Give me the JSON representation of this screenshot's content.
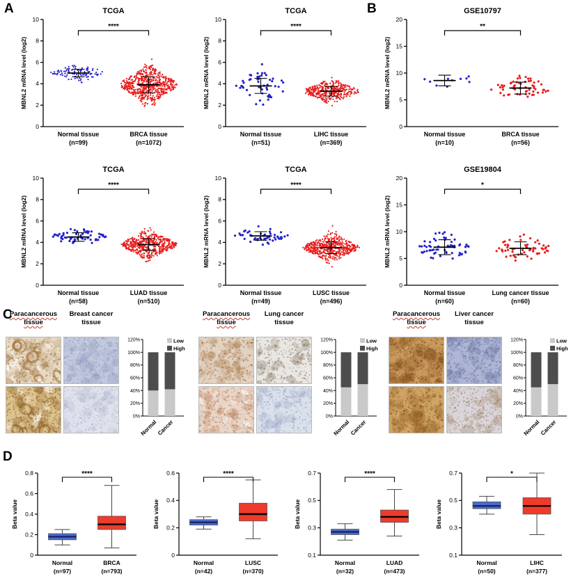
{
  "figure": {
    "panel_labels": {
      "A": "A",
      "B": "B",
      "C": "C",
      "D": "D"
    }
  },
  "colors": {
    "normal_points": "#2222cc",
    "tumor_points": "#e81c1c",
    "normal_box_fill": "#4a6ccb",
    "tumor_box_fill": "#ef3b2c",
    "bar_low": "#c9c9c9",
    "bar_high": "#4d4d4d"
  },
  "chart_data": [
    {
      "id": "a1",
      "panel": "A",
      "type": "scatter",
      "title": "TCGA",
      "ylabel": "MBNL2 mRNA level (log2)",
      "ylim": [
        0,
        10
      ],
      "yticks": [
        0,
        2,
        4,
        6,
        8,
        10
      ],
      "significance": "****",
      "groups": [
        {
          "label": "Normal tissue",
          "n_label": "(n=99)",
          "n": 99,
          "color": "#2222cc",
          "mean": 5.0,
          "sd": 0.35,
          "range": [
            3.7,
            6.3
          ]
        },
        {
          "label": "BRCA tissue",
          "n_label": "(n=1072)",
          "n": 1072,
          "color": "#e81c1c",
          "mean": 3.9,
          "sd": 0.75,
          "range": [
            1.2,
            6.6
          ]
        }
      ]
    },
    {
      "id": "a2",
      "panel": "A",
      "type": "scatter",
      "title": "TCGA",
      "ylabel": "MBNL2 mRNA level (log2)",
      "ylim": [
        0,
        10
      ],
      "yticks": [
        0,
        2,
        4,
        6,
        8,
        10
      ],
      "significance": "****",
      "groups": [
        {
          "label": "Normal tissue",
          "n_label": "(n=51)",
          "n": 51,
          "color": "#2222cc",
          "mean": 3.8,
          "sd": 0.7,
          "range": [
            2.0,
            6.3
          ]
        },
        {
          "label": "LIHC tissue",
          "n_label": "(n=369)",
          "n": 369,
          "color": "#e81c1c",
          "mean": 3.3,
          "sd": 0.45,
          "range": [
            1.7,
            5.7
          ]
        }
      ]
    },
    {
      "id": "a3",
      "panel": "A",
      "type": "scatter",
      "title": "TCGA",
      "ylabel": "MBNL2 mRNA level (log2)",
      "ylim": [
        0,
        10
      ],
      "yticks": [
        0,
        2,
        4,
        6,
        8,
        10
      ],
      "significance": "****",
      "groups": [
        {
          "label": "Normal tissue",
          "n_label": "(n=58)",
          "n": 58,
          "color": "#2222cc",
          "mean": 4.5,
          "sd": 0.4,
          "range": [
            3.4,
            5.7
          ]
        },
        {
          "label": "LUAD tissue",
          "n_label": "(n=510)",
          "n": 510,
          "color": "#e81c1c",
          "mean": 3.8,
          "sd": 0.55,
          "range": [
            1.4,
            5.8
          ]
        }
      ]
    },
    {
      "id": "a4",
      "panel": "A",
      "type": "scatter",
      "title": "TCGA",
      "ylabel": "MBNL2 mRNA level (log2)",
      "ylim": [
        0,
        10
      ],
      "yticks": [
        0,
        2,
        4,
        6,
        8,
        10
      ],
      "significance": "****",
      "groups": [
        {
          "label": "Normal tissue",
          "n_label": "(n=49)",
          "n": 49,
          "color": "#2222cc",
          "mean": 4.6,
          "sd": 0.4,
          "range": [
            3.5,
            5.7
          ]
        },
        {
          "label": "LUSC tissue",
          "n_label": "(n=496)",
          "n": 496,
          "color": "#e81c1c",
          "mean": 3.5,
          "sd": 0.55,
          "range": [
            1.4,
            5.7
          ]
        }
      ]
    },
    {
      "id": "b1",
      "panel": "B",
      "type": "scatter",
      "title": "GSE10797",
      "ylabel": "MBNL2 mRNA level (log2)",
      "ylim": [
        0,
        20
      ],
      "yticks": [
        0,
        5,
        10,
        15,
        20
      ],
      "significance": "**",
      "groups": [
        {
          "label": "Normal tissue",
          "n_label": "(n=10)",
          "n": 10,
          "color": "#2222cc",
          "mean": 8.6,
          "sd": 1.0,
          "range": [
            6.6,
            10.3
          ]
        },
        {
          "label": "BRCA tissue",
          "n_label": "(n=56)",
          "n": 56,
          "color": "#e81c1c",
          "mean": 7.2,
          "sd": 1.1,
          "range": [
            4.6,
            9.9
          ]
        }
      ]
    },
    {
      "id": "b2",
      "panel": "B",
      "type": "scatter",
      "title": "GSE19804",
      "ylabel": "MBNL2 mRNA level (log2)",
      "ylim": [
        0,
        20
      ],
      "yticks": [
        0,
        5,
        10,
        15,
        20
      ],
      "significance": "*",
      "groups": [
        {
          "label": "Normal tissue",
          "n_label": "(n=60)",
          "n": 60,
          "color": "#2222cc",
          "mean": 7.1,
          "sd": 1.4,
          "range": [
            4.4,
            10.3
          ]
        },
        {
          "label": "Lung cancer tissue",
          "n_label": "(n=60)",
          "n": 60,
          "color": "#e81c1c",
          "mean": 6.9,
          "sd": 1.2,
          "range": [
            4.4,
            10.1
          ]
        }
      ]
    },
    {
      "id": "c1",
      "panel": "C",
      "type": "stacked_bar",
      "categories": [
        "Normal",
        "Cancer"
      ],
      "series": [
        {
          "name": "Low",
          "color": "#c9c9c9",
          "values": [
            40,
            42
          ]
        },
        {
          "name": "High",
          "color": "#4d4d4d",
          "values": [
            60,
            58
          ]
        }
      ],
      "tick_values": [
        0,
        20,
        40,
        60,
        80,
        100,
        120
      ],
      "tick_labels": [
        "0%",
        "20%",
        "40%",
        "60%",
        "80%",
        "100%",
        "120%"
      ],
      "ylim": [
        0,
        120
      ]
    },
    {
      "id": "c2",
      "panel": "C",
      "type": "stacked_bar",
      "categories": [
        "Normal",
        "Cancer"
      ],
      "series": [
        {
          "name": "Low",
          "color": "#c9c9c9",
          "values": [
            45,
            50
          ]
        },
        {
          "name": "High",
          "color": "#4d4d4d",
          "values": [
            55,
            50
          ]
        }
      ],
      "tick_values": [
        0,
        20,
        40,
        60,
        80,
        100,
        120
      ],
      "tick_labels": [
        "0%",
        "20%",
        "40%",
        "60%",
        "80%",
        "100%",
        "120%"
      ],
      "ylim": [
        0,
        120
      ]
    },
    {
      "id": "c3",
      "panel": "C",
      "type": "stacked_bar",
      "categories": [
        "Normal",
        "Cancer"
      ],
      "series": [
        {
          "name": "Low",
          "color": "#c9c9c9",
          "values": [
            45,
            50
          ]
        },
        {
          "name": "High",
          "color": "#4d4d4d",
          "values": [
            55,
            50
          ]
        }
      ],
      "tick_values": [
        0,
        20,
        40,
        60,
        80,
        100,
        120
      ],
      "tick_labels": [
        "0%",
        "20%",
        "40%",
        "60%",
        "80%",
        "100%",
        "120%"
      ],
      "ylim": [
        0,
        120
      ]
    },
    {
      "id": "d1",
      "panel": "D",
      "type": "box",
      "ylabel": "Beta value",
      "ylim": [
        0,
        0.8
      ],
      "yticks": [
        0,
        0.2,
        0.4,
        0.6,
        0.8
      ],
      "significance": "****",
      "groups": [
        {
          "label": "Normal",
          "n_label": "(n=97)",
          "fill": "#4a6ccb",
          "median_color": "#16246b",
          "whiskers": [
            0.1,
            0.25
          ],
          "box": [
            0.15,
            0.21
          ],
          "median": 0.18
        },
        {
          "label": "BRCA",
          "n_label": "(n=793)",
          "fill": "#ef3b2c",
          "median_color": "#000000",
          "whiskers": [
            0.07,
            0.68
          ],
          "box": [
            0.25,
            0.38
          ],
          "median": 0.3
        }
      ]
    },
    {
      "id": "d2",
      "panel": "D",
      "type": "box",
      "ylabel": "Beta value",
      "ylim": [
        0,
        0.6
      ],
      "yticks": [
        0,
        0.2,
        0.4,
        0.6
      ],
      "significance": "****",
      "groups": [
        {
          "label": "Normal",
          "n_label": "(n=42)",
          "fill": "#4a6ccb",
          "median_color": "#16246b",
          "whiskers": [
            0.19,
            0.28
          ],
          "box": [
            0.22,
            0.26
          ],
          "median": 0.24
        },
        {
          "label": "LUSC",
          "n_label": "(n=370)",
          "fill": "#ef3b2c",
          "median_color": "#000000",
          "whiskers": [
            0.12,
            0.55
          ],
          "box": [
            0.25,
            0.38
          ],
          "median": 0.3
        }
      ]
    },
    {
      "id": "d3",
      "panel": "D",
      "type": "box",
      "ylabel": "Beta value",
      "ylim": [
        0.1,
        0.7
      ],
      "yticks": [
        0.1,
        0.3,
        0.5,
        0.7
      ],
      "significance": "****",
      "groups": [
        {
          "label": "Normal",
          "n_label": "(n=32)",
          "fill": "#4a6ccb",
          "median_color": "#16246b",
          "whiskers": [
            0.21,
            0.33
          ],
          "box": [
            0.25,
            0.29
          ],
          "median": 0.27
        },
        {
          "label": "LUAD",
          "n_label": "(n=473)",
          "fill": "#ef3b2c",
          "median_color": "#000000",
          "whiskers": [
            0.24,
            0.58
          ],
          "box": [
            0.34,
            0.43
          ],
          "median": 0.38
        }
      ]
    },
    {
      "id": "d4",
      "panel": "D",
      "type": "box",
      "ylabel": "Beta value",
      "ylim": [
        0.1,
        0.7
      ],
      "yticks": [
        0.1,
        0.3,
        0.5,
        0.7
      ],
      "significance": "*",
      "groups": [
        {
          "label": "Normal",
          "n_label": "(n=50)",
          "fill": "#4a6ccb",
          "median_color": "#16246b",
          "whiskers": [
            0.4,
            0.53
          ],
          "box": [
            0.44,
            0.49
          ],
          "median": 0.46
        },
        {
          "label": "LIHC",
          "n_label": "(n=377)",
          "fill": "#ef3b2c",
          "median_color": "#000000",
          "whiskers": [
            0.25,
            0.7
          ],
          "box": [
            0.4,
            0.52
          ],
          "median": 0.46
        }
      ]
    }
  ],
  "ihc": {
    "legend": [
      "Low",
      "High"
    ],
    "groups": [
      {
        "left_header": [
          "Paracancerous",
          "tissue"
        ],
        "right_header": [
          "Breast cancer",
          "tissue"
        ],
        "images": [
          {
            "name": "breast-paracancerous-1",
            "base": "#e7d9c4",
            "stain": "#9a6a30",
            "style": "glands",
            "density": 0.55
          },
          {
            "name": "breast-cancer-1",
            "base": "#c3cade",
            "stain": "#8a94bb",
            "style": "cells",
            "density": 0.75
          },
          {
            "name": "breast-paracancerous-2",
            "base": "#dcc28e",
            "stain": "#8a5a20",
            "style": "glands",
            "density": 0.85
          },
          {
            "name": "breast-cancer-2",
            "base": "#dfe2ec",
            "stain": "#aab1cc",
            "style": "cells",
            "density": 0.6
          }
        ]
      },
      {
        "left_header": [
          "Paracancerous",
          "tissue"
        ],
        "right_header": [
          "Lung cancer",
          "tissue"
        ],
        "images": [
          {
            "name": "lung-paracancerous-1",
            "base": "#e2d3c3",
            "stain": "#a06a34",
            "style": "speckle",
            "density": 0.7
          },
          {
            "name": "lung-cancer-1",
            "base": "#e9e7e3",
            "stain": "#7c6a52",
            "style": "speckle",
            "density": 0.4
          },
          {
            "name": "lung-paracancerous-2",
            "base": "#e8d6c8",
            "stain": "#b4714a",
            "style": "airy",
            "density": 0.6
          },
          {
            "name": "lung-cancer-2",
            "base": "#dbe1eb",
            "stain": "#8b98bd",
            "style": "cells",
            "density": 0.5
          }
        ]
      },
      {
        "left_header": [
          "Paracancerous",
          "tissue"
        ],
        "right_header": [
          "Liver cancer",
          "tissue"
        ],
        "images": [
          {
            "name": "liver-paracancerous-1",
            "base": "#c89a5e",
            "stain": "#7c4412",
            "style": "dense",
            "density": 0.9
          },
          {
            "name": "liver-cancer-1",
            "base": "#aeb6d4",
            "stain": "#5f6a9a",
            "style": "cells",
            "density": 0.8
          },
          {
            "name": "liver-paracancerous-2",
            "base": "#cfa567",
            "stain": "#8a5218",
            "style": "dense",
            "density": 0.85
          },
          {
            "name": "liver-cancer-2",
            "base": "#d9d5da",
            "stain": "#9a7a55",
            "style": "cells",
            "density": 0.55
          }
        ]
      }
    ]
  }
}
